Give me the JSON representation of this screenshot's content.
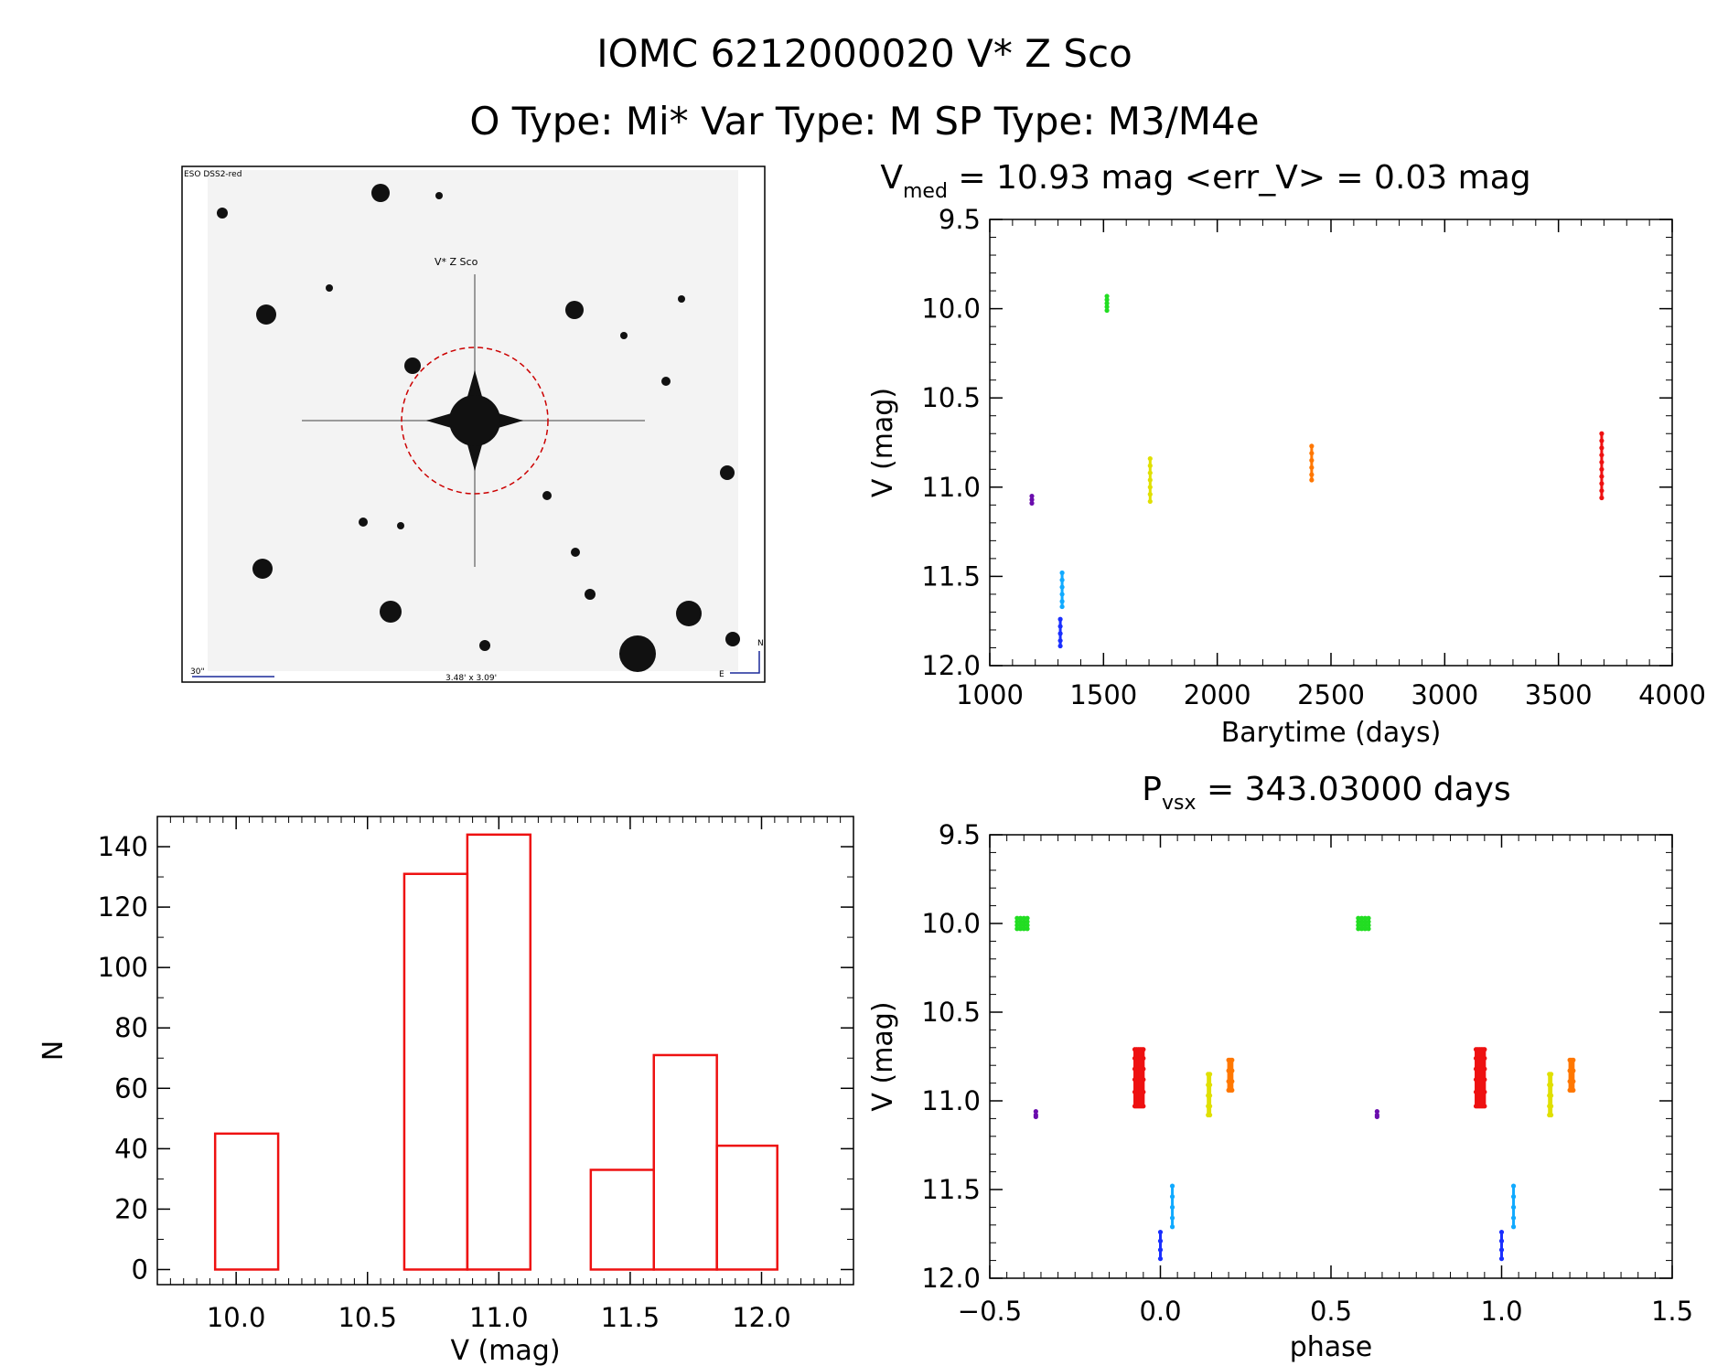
{
  "header": {
    "title": "IOMC 6212000020   V* Z Sco",
    "subtitle": "O Type: Mi*  Var Type: M  SP Type: M3/M4e"
  },
  "finder": {
    "survey_label": "ESO DSS2-red",
    "target_label": "V* Z Sco",
    "scale_label": "30\"",
    "fov_label": "3.48' x 3.09'",
    "north_label": "N",
    "east_label": "E",
    "marker_color": "#cc0000"
  },
  "chart_data": [
    {
      "id": "lightcurve",
      "type": "scatter",
      "title_parts": {
        "main": "V",
        "sub": "med",
        "rest": " = 10.93 mag <err_V> = 0.03 mag"
      },
      "xlabel": "Barytime (days)",
      "ylabel": "V (mag)",
      "xlim": [
        1000,
        4000
      ],
      "ylim": [
        12.0,
        9.5
      ],
      "xticks": [
        1000,
        1500,
        2000,
        2500,
        3000,
        3500,
        4000
      ],
      "yticks": [
        9.5,
        10.0,
        10.5,
        11.0,
        11.5,
        12.0
      ],
      "xtick_labels": [
        "1000",
        "1500",
        "2000",
        "2500",
        "3000",
        "3500",
        "4000"
      ],
      "ytick_labels": [
        "9.5",
        "10.0",
        "10.5",
        "11.0",
        "11.5",
        "12.0"
      ],
      "series": [
        {
          "name": "purple",
          "color": "#6a0dad",
          "x": 1185,
          "v": [
            11.05,
            11.07,
            11.09
          ]
        },
        {
          "name": "blue",
          "color": "#1a2fff",
          "x": 1310,
          "v": [
            11.74,
            11.78,
            11.82,
            11.86,
            11.89
          ]
        },
        {
          "name": "cyan",
          "color": "#11aaff",
          "x": 1318,
          "v": [
            11.48,
            11.52,
            11.56,
            11.6,
            11.64,
            11.67
          ]
        },
        {
          "name": "green",
          "color": "#22dd22",
          "x": 1515,
          "v": [
            9.93,
            9.95,
            9.97,
            9.99,
            10.01
          ]
        },
        {
          "name": "yellow",
          "color": "#e0e000",
          "x": 1705,
          "v": [
            10.84,
            10.88,
            10.92,
            10.96,
            11.0,
            11.04,
            11.08
          ]
        },
        {
          "name": "orange",
          "color": "#ff7700",
          "x": 2415,
          "v": [
            10.77,
            10.81,
            10.85,
            10.89,
            10.93,
            10.96
          ]
        },
        {
          "name": "red",
          "color": "#ee1111",
          "x": 3690,
          "v": [
            10.7,
            10.74,
            10.78,
            10.82,
            10.86,
            10.9,
            10.94,
            10.98,
            11.02,
            11.06
          ]
        }
      ]
    },
    {
      "id": "histogram",
      "type": "bar",
      "xlabel": "V (mag)",
      "ylabel": "N",
      "xlim": [
        9.7,
        12.35
      ],
      "ylim": [
        -5,
        150
      ],
      "xticks": [
        10.0,
        10.5,
        11.0,
        11.5,
        12.0
      ],
      "yticks": [
        0,
        20,
        40,
        60,
        80,
        100,
        120,
        140
      ],
      "xtick_labels": [
        "10.0",
        "10.5",
        "11.0",
        "11.5",
        "12.0"
      ],
      "ytick_labels": [
        "0",
        "20",
        "40",
        "60",
        "80",
        "100",
        "120",
        "140"
      ],
      "bar_color": "#ee1111",
      "bins": [
        {
          "x0": 9.92,
          "x1": 10.16,
          "n": 45
        },
        {
          "x0": 10.64,
          "x1": 10.88,
          "n": 131
        },
        {
          "x0": 10.88,
          "x1": 11.12,
          "n": 144
        },
        {
          "x0": 11.35,
          "x1": 11.59,
          "n": 33
        },
        {
          "x0": 11.59,
          "x1": 11.83,
          "n": 71
        },
        {
          "x0": 11.83,
          "x1": 12.06,
          "n": 41
        }
      ]
    },
    {
      "id": "phased",
      "type": "scatter",
      "title_parts": {
        "main": "P",
        "sub": "vsx",
        "rest": " = 343.03000 days"
      },
      "xlabel": "phase",
      "ylabel": "V (mag)",
      "xlim": [
        -0.5,
        1.5
      ],
      "ylim": [
        12.0,
        9.5
      ],
      "xticks": [
        -0.5,
        0.0,
        0.5,
        1.0,
        1.5
      ],
      "yticks": [
        9.5,
        10.0,
        10.5,
        11.0,
        11.5,
        12.0
      ],
      "xtick_labels": [
        "−0.5",
        "0.0",
        "0.5",
        "1.0",
        "1.5"
      ],
      "ytick_labels": [
        "9.5",
        "10.0",
        "10.5",
        "11.0",
        "11.5",
        "12.0"
      ],
      "series": [
        {
          "name": "green",
          "color": "#22dd22",
          "x": [
            -0.42,
            -0.41,
            -0.4,
            -0.39
          ],
          "v": [
            9.97,
            9.99,
            10.01,
            10.03
          ],
          "period": true
        },
        {
          "name": "purple",
          "color": "#6a0dad",
          "x": [
            -0.365
          ],
          "v": [
            11.06,
            11.08,
            11.09
          ],
          "period": true
        },
        {
          "name": "red",
          "color": "#ee1111",
          "x": [
            -0.075,
            -0.07,
            -0.065,
            -0.06,
            -0.055,
            -0.05
          ],
          "v": [
            10.71,
            10.76,
            10.82,
            10.88,
            10.95,
            11.03
          ],
          "period": true
        },
        {
          "name": "blue",
          "color": "#1a2fff",
          "x": [
            0.0
          ],
          "v": [
            11.74,
            11.79,
            11.84,
            11.89
          ],
          "period": true
        },
        {
          "name": "cyan",
          "color": "#11aaff",
          "x": [
            0.035
          ],
          "v": [
            11.48,
            11.54,
            11.6,
            11.66,
            11.71
          ],
          "period": true
        },
        {
          "name": "yellow",
          "color": "#e0e000",
          "x": [
            0.14,
            0.145
          ],
          "v": [
            10.85,
            10.91,
            10.97,
            11.03,
            11.08
          ],
          "period": true
        },
        {
          "name": "orange",
          "color": "#ff7700",
          "x": [
            0.2,
            0.205,
            0.21
          ],
          "v": [
            10.77,
            10.83,
            10.89,
            10.94
          ],
          "period": true
        }
      ]
    }
  ]
}
